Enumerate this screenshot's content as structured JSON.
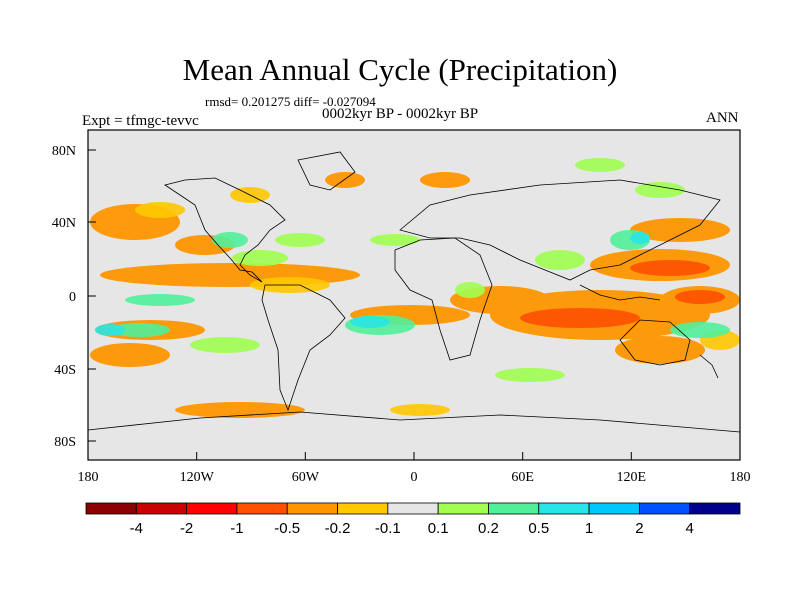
{
  "title": "Mean Annual Cycle (Precipitation)",
  "stats_line": "rmsd= 0.201275 diff= -0.027094",
  "period_line": "0002kyr BP - 0002kyr BP",
  "experiment": "Expt = tfmgc-tevvc",
  "season": "ANN",
  "axes": {
    "lat_ticks": [
      "80N",
      "40N",
      "0",
      "40S",
      "80S"
    ],
    "lon_ticks": [
      "180",
      "120W",
      "60W",
      "0",
      "60E",
      "120E",
      "180"
    ]
  },
  "colorbar": {
    "colors": [
      "#8b0000",
      "#c80000",
      "#ff0000",
      "#ff5000",
      "#ff9600",
      "#ffc800",
      "#e6e6e6",
      "#a0ff50",
      "#50f09b",
      "#28e6e6",
      "#00c8ff",
      "#0050ff",
      "#00008b"
    ],
    "labels": [
      "-4",
      "-2",
      "-1",
      "-0.5",
      "-0.2",
      "-0.1",
      "0.1",
      "0.2",
      "0.5",
      "1",
      "2",
      "4"
    ]
  },
  "background_color": "#e6e6e6"
}
